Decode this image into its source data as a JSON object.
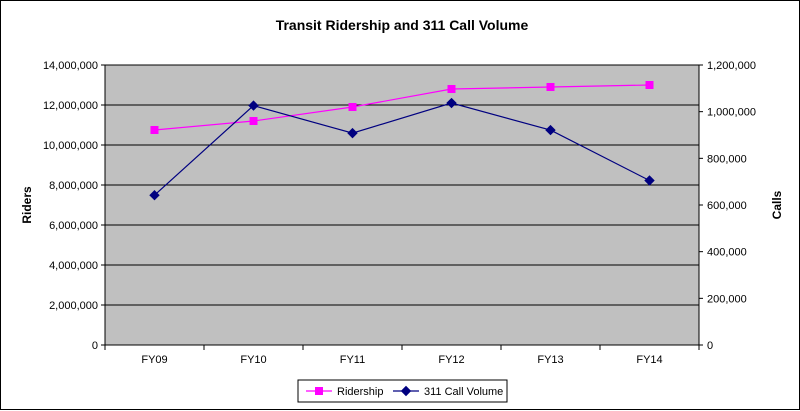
{
  "chart_data": {
    "type": "line",
    "title": "Transit Ridership and 311 Call Volume",
    "categories": [
      "FY09",
      "FY10",
      "FY11",
      "FY12",
      "FY13",
      "FY14"
    ],
    "y_left": {
      "label": "Riders",
      "range": [
        0,
        14000000
      ],
      "ticks": [
        0,
        2000000,
        4000000,
        6000000,
        8000000,
        10000000,
        12000000,
        14000000
      ],
      "tick_labels": [
        "0",
        "2,000,000",
        "4,000,000",
        "6,000,000",
        "8,000,000",
        "10,000,000",
        "12,000,000",
        "14,000,000"
      ]
    },
    "y_right": {
      "label": "Calls",
      "range": [
        0,
        1200000
      ],
      "ticks": [
        0,
        200000,
        400000,
        600000,
        800000,
        1000000,
        1200000
      ],
      "tick_labels": [
        "0",
        "200,000",
        "400,000",
        "600,000",
        "800,000",
        "1,000,000",
        "1,200,000"
      ]
    },
    "series": [
      {
        "name": "Ridership",
        "axis": "left",
        "color": "#ff00ff",
        "marker": "square",
        "values": [
          10750000,
          11200000,
          11900000,
          12800000,
          12900000,
          13000000
        ]
      },
      {
        "name": "311 Call Volume",
        "axis": "right",
        "color": "#000080",
        "marker": "diamond",
        "values": [
          642000,
          1026000,
          908000,
          1037000,
          921000,
          705000
        ]
      }
    ],
    "plot_background": "#c0c0c0",
    "grid": true,
    "legend_position": "bottom"
  }
}
